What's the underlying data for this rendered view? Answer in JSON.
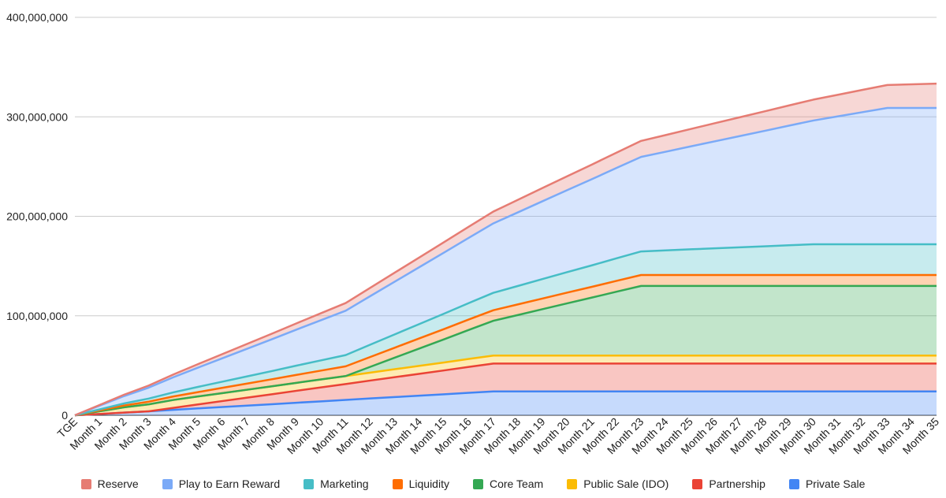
{
  "chart_data": {
    "type": "area",
    "stacked": true,
    "title": "",
    "xlabel": "",
    "ylabel": "",
    "ylim": [
      0,
      400000000
    ],
    "y_ticks": [
      0,
      100000000,
      200000000,
      300000000,
      400000000
    ],
    "y_tick_labels": [
      "0",
      "100,000,000",
      "200,000,000",
      "300,000,000",
      "400,000,000"
    ],
    "grid": true,
    "legend_position": "bottom",
    "categories": [
      "TGE",
      "Month 1",
      "Month 2",
      "Month 3",
      "Month 4",
      "Month 5",
      "Month 6",
      "Month 7",
      "Month 8",
      "Month 9",
      "Month 10",
      "Month 11",
      "Month 12",
      "Month 13",
      "Month 14",
      "Month 15",
      "Month 16",
      "Month 17",
      "Month 18",
      "Month 19",
      "Month 20",
      "Month 21",
      "Month 22",
      "Month 23",
      "Month 24",
      "Month 25",
      "Month 26",
      "Month 27",
      "Month 28",
      "Month 29",
      "Month 30",
      "Month 31",
      "Month 32",
      "Month 33",
      "Month 34",
      "Month 35"
    ],
    "series": [
      {
        "name": "Private Sale",
        "color": "#4285f4",
        "values": [
          0,
          1300000,
          2700000,
          4000000,
          5400000,
          6900000,
          8300000,
          9700000,
          11100000,
          12600000,
          14000000,
          15400000,
          16900000,
          18300000,
          19700000,
          21100000,
          22600000,
          24000000,
          24000000,
          24000000,
          24000000,
          24000000,
          24000000,
          24000000,
          24000000,
          24000000,
          24000000,
          24000000,
          24000000,
          24000000,
          24000000,
          24000000,
          24000000,
          24000000,
          24000000,
          24000000
        ]
      },
      {
        "name": "Partnership",
        "color": "#ea4335",
        "values": [
          0,
          0,
          0,
          0,
          2000000,
          4000000,
          6000000,
          8000000,
          10000000,
          12000000,
          14000000,
          16000000,
          18000000,
          20000000,
          22000000,
          24000000,
          26000000,
          28000000,
          28000000,
          28000000,
          28000000,
          28000000,
          28000000,
          28000000,
          28000000,
          28000000,
          28000000,
          28000000,
          28000000,
          28000000,
          28000000,
          28000000,
          28000000,
          28000000,
          28000000,
          28000000
        ]
      },
      {
        "name": "Public Sale (IDO)",
        "color": "#fbbc04",
        "values": [
          0,
          2700000,
          5300000,
          7000000,
          8000000,
          8000000,
          8000000,
          8000000,
          8000000,
          8000000,
          8000000,
          8000000,
          8000000,
          8000000,
          8000000,
          8000000,
          8000000,
          8000000,
          8000000,
          8000000,
          8000000,
          8000000,
          8000000,
          8000000,
          8000000,
          8000000,
          8000000,
          8000000,
          8000000,
          8000000,
          8000000,
          8000000,
          8000000,
          8000000,
          8000000,
          8000000
        ]
      },
      {
        "name": "Core Team",
        "color": "#34a853",
        "values": [
          0,
          0,
          0,
          0,
          0,
          0,
          0,
          0,
          0,
          0,
          0,
          0,
          5800000,
          11700000,
          17500000,
          23300000,
          29200000,
          35000000,
          40800000,
          46700000,
          52500000,
          58300000,
          64200000,
          70000000,
          70000000,
          70000000,
          70000000,
          70000000,
          70000000,
          70000000,
          70000000,
          70000000,
          70000000,
          70000000,
          70000000,
          70000000
        ]
      },
      {
        "name": "Liquidity",
        "color": "#ff6d01",
        "values": [
          0,
          900000,
          1800000,
          2700000,
          3500000,
          4400000,
          5300000,
          6200000,
          7100000,
          8000000,
          8900000,
          9800000,
          9900000,
          10000000,
          10200000,
          10300000,
          10500000,
          10600000,
          10700000,
          10700000,
          10800000,
          10800000,
          10900000,
          11000000,
          11000000,
          11000000,
          11000000,
          11000000,
          11000000,
          11000000,
          11000000,
          11000000,
          11000000,
          11000000,
          11000000,
          11000000
        ]
      },
      {
        "name": "Marketing",
        "color": "#46bdc6",
        "values": [
          0,
          1000000,
          2100000,
          3100000,
          4100000,
          5200000,
          6200000,
          7200000,
          8200000,
          9300000,
          10300000,
          11300000,
          12400000,
          13400000,
          14400000,
          15500000,
          16500000,
          17500000,
          18500000,
          19600000,
          20600000,
          21600000,
          22700000,
          23700000,
          24700000,
          25800000,
          26800000,
          27800000,
          28800000,
          29900000,
          30900000,
          30900000,
          30900000,
          30900000,
          30900000,
          30900000
        ]
      },
      {
        "name": "Play to Earn Reward",
        "color": "#7baaf7",
        "values": [
          0,
          3700000,
          7400000,
          11000000,
          15200000,
          19400000,
          23600000,
          27800000,
          32000000,
          36200000,
          40400000,
          44600000,
          48800000,
          53000000,
          57200000,
          61400000,
          65600000,
          69800000,
          74000000,
          78200000,
          82400000,
          86600000,
          90800000,
          95000000,
          99200000,
          103400000,
          107600000,
          111800000,
          116000000,
          120200000,
          124400000,
          128600000,
          132800000,
          137000000,
          137000000,
          137000000
        ]
      },
      {
        "name": "Reserve",
        "color": "#e67c73",
        "values": [
          0,
          700000,
          1400000,
          2100000,
          2800000,
          3500000,
          4200000,
          4900000,
          5600000,
          6300000,
          7000000,
          7700000,
          8400000,
          9100000,
          9800000,
          10500000,
          11200000,
          11900000,
          12600000,
          13300000,
          14000000,
          14700000,
          15400000,
          16100000,
          16800000,
          17500000,
          18200000,
          18900000,
          19600000,
          20300000,
          21000000,
          21700000,
          22400000,
          23100000,
          23800000,
          24500000
        ]
      }
    ],
    "legend_order": [
      "Reserve",
      "Play to Earn Reward",
      "Marketing",
      "Liquidity",
      "Core Team",
      "Public Sale (IDO)",
      "Partnership",
      "Private Sale"
    ]
  }
}
